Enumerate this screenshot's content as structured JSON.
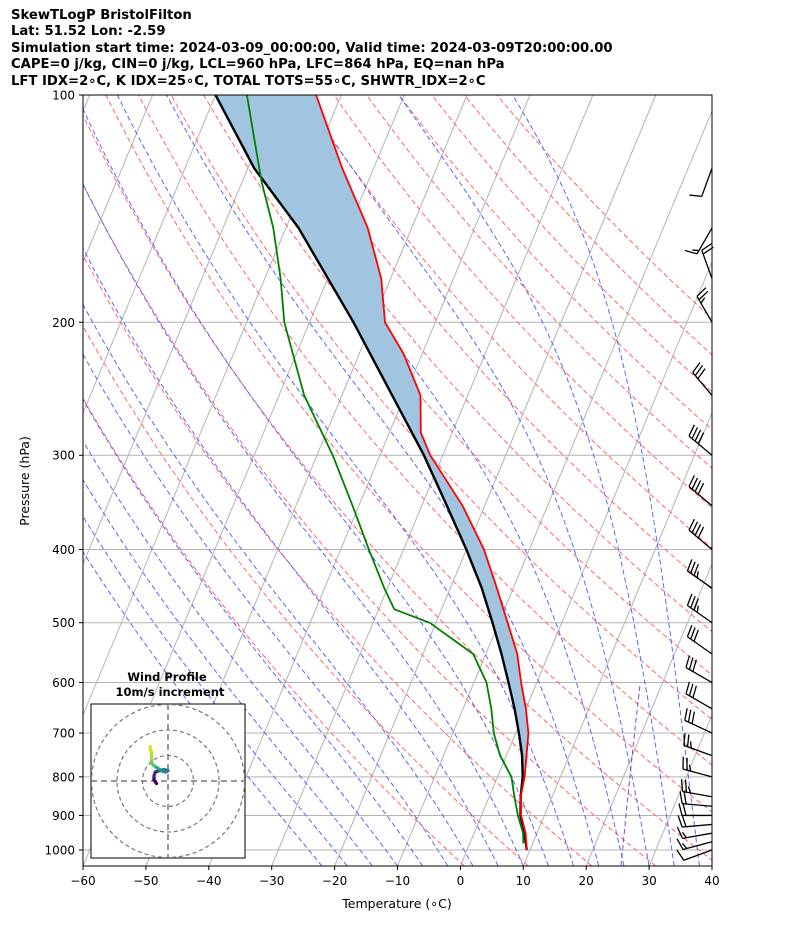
{
  "titles": [
    "SkewTLogP BristolFilton",
    "Lat: 51.52   Lon: -2.59",
    "Simulation start time: 2024-03-09_00:00:00, Valid time: 2024-03-09T20:00:00.00",
    "CAPE=0 j/kg, CIN=0 j/kg, LCL=960 hPa, LFC=864 hPa, EQ=nan hPa",
    "LFT IDX=2∘C, K IDX=25∘C, TOTAL TOTS=55∘C, SHWTR_IDX=2∘C"
  ],
  "colors": {
    "temperature": "#ff0000",
    "dewpoint": "#008000",
    "parcel": "#000000",
    "fill": "#a1c5e0",
    "dry_adiabat": "#ff6666",
    "moist_adiabat": "#5566ff",
    "isotherm": "#b3b3b3",
    "mixing_ratio": "#8844cc"
  },
  "chart_data": {
    "type": "line",
    "title": "SkewTLogP BristolFilton",
    "xlabel": "Temperature (∘C)",
    "ylabel": "Pressure (hPa)",
    "xlim": [
      -60,
      40
    ],
    "ylim": [
      1050,
      100
    ],
    "x_ticks": [
      -60,
      -50,
      -40,
      -30,
      -20,
      -10,
      0,
      10,
      20,
      30,
      40
    ],
    "x_tick_labels": [
      "−60",
      "−50",
      "−40",
      "−30",
      "−20",
      "−10",
      "0",
      "10",
      "20",
      "30",
      "40"
    ],
    "y_ticks": [
      100,
      200,
      300,
      400,
      500,
      600,
      700,
      800,
      900,
      1000
    ],
    "y_tick_labels": [
      "100",
      "200",
      "300",
      "400",
      "500",
      "600",
      "700",
      "800",
      "900",
      "1000"
    ],
    "skew_deg_per_decade": 50,
    "series": [
      {
        "name": "Temperature",
        "unit": "C",
        "points": [
          [
            1000,
            9.5
          ],
          [
            950,
            8.2
          ],
          [
            900,
            6.3
          ],
          [
            850,
            5.0
          ],
          [
            800,
            4.3
          ],
          [
            750,
            3.2
          ],
          [
            700,
            2.0
          ],
          [
            650,
            0.0
          ],
          [
            600,
            -2.5
          ],
          [
            550,
            -5.0
          ],
          [
            500,
            -8.6
          ],
          [
            450,
            -12.6
          ],
          [
            400,
            -17.2
          ],
          [
            350,
            -23.5
          ],
          [
            300,
            -32.0
          ],
          [
            280,
            -35.0
          ],
          [
            250,
            -37.5
          ],
          [
            220,
            -43.0
          ],
          [
            200,
            -48.0
          ],
          [
            175,
            -51.5
          ],
          [
            150,
            -57.0
          ],
          [
            125,
            -65.0
          ],
          [
            100,
            -74.0
          ]
        ]
      },
      {
        "name": "Dewpoint",
        "unit": "C",
        "points": [
          [
            980,
            8.5
          ],
          [
            950,
            7.8
          ],
          [
            900,
            5.8
          ],
          [
            850,
            4.0
          ],
          [
            800,
            2.2
          ],
          [
            750,
            -1.0
          ],
          [
            700,
            -3.5
          ],
          [
            650,
            -5.5
          ],
          [
            600,
            -8.0
          ],
          [
            550,
            -12.0
          ],
          [
            500,
            -21.0
          ],
          [
            480,
            -27.5
          ],
          [
            450,
            -30.5
          ],
          [
            400,
            -35.5
          ],
          [
            350,
            -41.0
          ],
          [
            300,
            -47.5
          ],
          [
            250,
            -56.0
          ],
          [
            200,
            -64.0
          ],
          [
            175,
            -67.5
          ],
          [
            150,
            -72.0
          ],
          [
            130,
            -77.0
          ],
          [
            100,
            -85.0
          ]
        ]
      },
      {
        "name": "Parcel",
        "unit": "C",
        "points": [
          [
            1000,
            9.5
          ],
          [
            950,
            8.0
          ],
          [
            900,
            6.2
          ],
          [
            850,
            5.0
          ],
          [
            800,
            4.0
          ],
          [
            750,
            2.5
          ],
          [
            700,
            0.5
          ],
          [
            650,
            -1.8
          ],
          [
            600,
            -4.5
          ],
          [
            550,
            -7.5
          ],
          [
            500,
            -11.0
          ],
          [
            450,
            -15.0
          ],
          [
            400,
            -20.0
          ],
          [
            350,
            -26.0
          ],
          [
            300,
            -33.0
          ],
          [
            250,
            -42.0
          ],
          [
            200,
            -53.0
          ],
          [
            150,
            -68.0
          ],
          [
            125,
            -79.0
          ],
          [
            100,
            -90.0
          ]
        ]
      }
    ],
    "shaded_region": "between temperature and parcel curves",
    "reference_lines": {
      "isotherms_every_C": 10,
      "dry_adiabats_theta_K": [
        270,
        280,
        290,
        300,
        310,
        320,
        330,
        340,
        350,
        360,
        370,
        380,
        390,
        400,
        410,
        420,
        430,
        440
      ],
      "moist_adiabats_start_C": [
        -22,
        -18,
        -14,
        -10,
        -6,
        -2,
        2,
        6,
        10,
        14,
        18,
        22,
        26,
        30,
        34,
        38
      ],
      "mixing_ratio_lines": 2
    },
    "wind_barbs": {
      "pressures_hPa": [
        1000,
        975,
        950,
        925,
        900,
        875,
        850,
        800,
        750,
        700,
        650,
        600,
        550,
        500,
        450,
        400,
        350,
        300,
        250,
        200,
        175,
        150,
        125
      ],
      "directions_deg": [
        250,
        255,
        260,
        265,
        270,
        275,
        280,
        285,
        290,
        295,
        300,
        300,
        305,
        305,
        305,
        310,
        310,
        310,
        320,
        330,
        340,
        210,
        200
      ],
      "speeds_kt": [
        10,
        15,
        18,
        20,
        20,
        22,
        25,
        25,
        28,
        30,
        30,
        30,
        30,
        35,
        35,
        40,
        40,
        40,
        30,
        25,
        20,
        15,
        10
      ]
    },
    "hodograph": {
      "title": "Wind Profile",
      "subtitle": "10m/s increment",
      "ring_increment_ms": 10,
      "rings": 3,
      "trace_uv_ms": [
        [
          -4.5,
          -1.0
        ],
        [
          -5.5,
          0.5
        ],
        [
          -5.5,
          2.0
        ],
        [
          -5.0,
          3.5
        ],
        [
          -3.5,
          4.0
        ],
        [
          -1.5,
          4.5
        ],
        [
          0.0,
          4.0
        ],
        [
          -1.0,
          3.5
        ],
        [
          -2.5,
          4.0
        ],
        [
          -4.0,
          5.0
        ],
        [
          -5.5,
          6.0
        ],
        [
          -6.5,
          7.0
        ],
        [
          -6.5,
          8.5
        ],
        [
          -6.5,
          10.0
        ],
        [
          -6.5,
          11.5
        ],
        [
          -7.0,
          12.5
        ],
        [
          -7.0,
          13.5
        ]
      ]
    }
  }
}
